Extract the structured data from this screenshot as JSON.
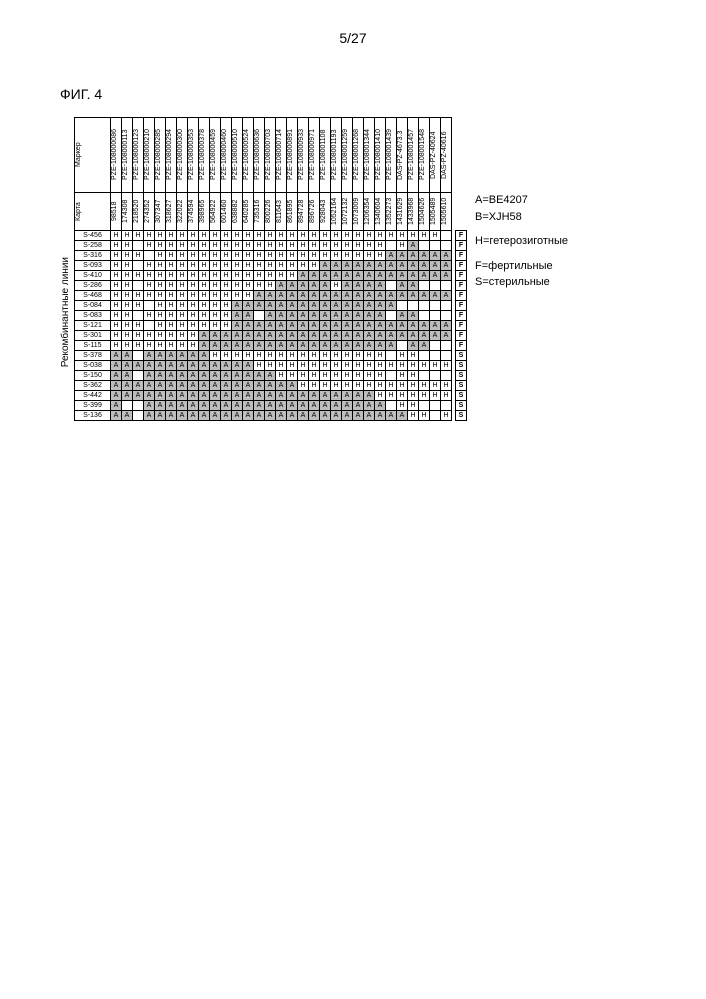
{
  "page_number": "5/27",
  "figure_label": "ФИГ. 4",
  "y_axis_label": "Рекомбинантные линии",
  "header_marker": "Маркер",
  "header_karta": "Карта",
  "markers": [
    "PZE-108000086",
    "PZE-108000113",
    "PZE-108000123",
    "PZE-108000210",
    "PZE-108000285",
    "PZE-108000294",
    "PZE-108000300",
    "PZE-108000353",
    "PZE-108000378",
    "PZE-108000459",
    "PZE-108000460",
    "PZE-108000510",
    "PZE-108000524",
    "PZE-108000636",
    "PZE-108000703",
    "PZE-108000714",
    "PZE-108000891",
    "PZE-108000933",
    "PZE-108000971",
    "PZE-108001108",
    "PZE-108001193",
    "PZE-108001259",
    "PZE-108001268",
    "PZE-108001344",
    "PZE-108001410",
    "PZE-108001439",
    "DAS-PZ-4673.3",
    "PZE-108001457",
    "PZE-108001548",
    "DAS-PZ-40624",
    "DAS-PZ-40616"
  ],
  "karta": [
    "98518",
    "174308",
    "218520",
    "274352",
    "307347",
    "318627",
    "322022",
    "374594",
    "398965",
    "564922",
    "601460",
    "638882",
    "640285",
    "735316",
    "800226",
    "811643",
    "861895",
    "894728",
    "896726",
    "928043",
    "1052164",
    "1072132",
    "1073009",
    "1206354",
    "1340604",
    "1352273",
    "1431629",
    "1433968",
    "1504626",
    "1505489",
    "1505610"
  ],
  "rows": [
    {
      "label": "S-456",
      "g": [
        "H",
        "H",
        "H",
        "H",
        "H",
        "H",
        "H",
        "H",
        "H",
        "H",
        "H",
        "H",
        "H",
        "H",
        "H",
        "H",
        "H",
        "H",
        "H",
        "H",
        "H",
        "H",
        "H",
        "H",
        "H",
        "H",
        "H",
        "H",
        "H",
        "H",
        ""
      ],
      "r": "F"
    },
    {
      "label": "S-258",
      "g": [
        "H",
        "H",
        "",
        "H",
        "H",
        "H",
        "H",
        "H",
        "H",
        "H",
        "H",
        "H",
        "H",
        "H",
        "H",
        "H",
        "H",
        "H",
        "H",
        "H",
        "H",
        "H",
        "H",
        "H",
        "H",
        "",
        "H",
        "A",
        "",
        "",
        ""
      ],
      "r": "F"
    },
    {
      "label": "S-316",
      "g": [
        "H",
        "H",
        "H",
        "",
        "H",
        "H",
        "H",
        "H",
        "H",
        "H",
        "H",
        "H",
        "H",
        "H",
        "H",
        "H",
        "H",
        "H",
        "H",
        "H",
        "H",
        "H",
        "H",
        "H",
        "H",
        "A",
        "A",
        "A",
        "A",
        "A",
        "A"
      ],
      "r": "F"
    },
    {
      "label": "S-093",
      "g": [
        "H",
        "H",
        "",
        "H",
        "H",
        "H",
        "H",
        "H",
        "H",
        "H",
        "H",
        "H",
        "H",
        "H",
        "H",
        "H",
        "H",
        "H",
        "H",
        "A",
        "A",
        "A",
        "A",
        "A",
        "A",
        "A",
        "A",
        "A",
        "A",
        "A",
        "A"
      ],
      "r": "F"
    },
    {
      "label": "S-410",
      "g": [
        "H",
        "H",
        "H",
        "H",
        "H",
        "H",
        "H",
        "H",
        "H",
        "H",
        "H",
        "H",
        "H",
        "H",
        "H",
        "H",
        "H",
        "A",
        "A",
        "A",
        "A",
        "A",
        "A",
        "A",
        "A",
        "A",
        "A",
        "A",
        "A",
        "A",
        "A"
      ],
      "r": "F"
    },
    {
      "label": "S-286",
      "g": [
        "H",
        "H",
        "",
        "H",
        "H",
        "H",
        "H",
        "H",
        "H",
        "H",
        "H",
        "H",
        "H",
        "H",
        "H",
        "A",
        "A",
        "A",
        "A",
        "A",
        "H",
        "A",
        "A",
        "A",
        "A",
        "",
        "A",
        "A",
        "",
        "",
        ""
      ],
      "r": "F"
    },
    {
      "label": "S-468",
      "g": [
        "H",
        "H",
        "H",
        "H",
        "H",
        "H",
        "H",
        "H",
        "H",
        "H",
        "H",
        "H",
        "H",
        "A",
        "A",
        "A",
        "A",
        "A",
        "A",
        "A",
        "A",
        "A",
        "A",
        "A",
        "A",
        "A",
        "A",
        "A",
        "A",
        "A",
        "A"
      ],
      "r": "F"
    },
    {
      "label": "S-084",
      "g": [
        "H",
        "H",
        "H",
        "",
        "H",
        "H",
        "H",
        "H",
        "H",
        "H",
        "H",
        "A",
        "A",
        "A",
        "A",
        "A",
        "A",
        "A",
        "A",
        "A",
        "A",
        "A",
        "A",
        "A",
        "A",
        "A",
        "",
        "",
        "",
        "",
        ""
      ],
      "r": "F"
    },
    {
      "label": "S-083",
      "g": [
        "H",
        "H",
        "",
        "H",
        "H",
        "H",
        "H",
        "H",
        "H",
        "H",
        "H",
        "A",
        "A",
        "",
        "A",
        "A",
        "A",
        "A",
        "A",
        "A",
        "A",
        "A",
        "A",
        "A",
        "A",
        "",
        "A",
        "A",
        "",
        "",
        ""
      ],
      "r": "F"
    },
    {
      "label": "S-121",
      "g": [
        "H",
        "H",
        "H",
        "",
        "H",
        "H",
        "H",
        "H",
        "H",
        "H",
        "H",
        "A",
        "A",
        "A",
        "A",
        "A",
        "A",
        "A",
        "A",
        "A",
        "A",
        "A",
        "A",
        "A",
        "A",
        "A",
        "A",
        "A",
        "A",
        "A",
        "A"
      ],
      "r": "F"
    },
    {
      "label": "S-301",
      "g": [
        "H",
        "H",
        "H",
        "H",
        "H",
        "H",
        "H",
        "H",
        "A",
        "A",
        "A",
        "A",
        "A",
        "A",
        "A",
        "A",
        "A",
        "A",
        "A",
        "A",
        "A",
        "A",
        "A",
        "A",
        "A",
        "A",
        "A",
        "A",
        "A",
        "A",
        "A"
      ],
      "r": "F"
    },
    {
      "label": "S-115",
      "g": [
        "H",
        "H",
        "H",
        "H",
        "H",
        "H",
        "H",
        "H",
        "A",
        "A",
        "A",
        "A",
        "A",
        "A",
        "A",
        "A",
        "A",
        "A",
        "A",
        "A",
        "A",
        "A",
        "A",
        "A",
        "A",
        "A",
        "",
        "A",
        "A",
        "",
        ""
      ],
      "r": "F"
    },
    {
      "label": "S-378",
      "g": [
        "A",
        "A",
        "",
        "A",
        "A",
        "A",
        "A",
        "A",
        "A",
        "H",
        "H",
        "H",
        "H",
        "H",
        "H",
        "H",
        "H",
        "H",
        "H",
        "H",
        "H",
        "H",
        "H",
        "H",
        "H",
        "",
        "H",
        "H",
        "",
        "",
        ""
      ],
      "r": "S"
    },
    {
      "label": "S-038",
      "g": [
        "A",
        "A",
        "A",
        "A",
        "A",
        "A",
        "A",
        "A",
        "A",
        "A",
        "A",
        "A",
        "A",
        "H",
        "H",
        "H",
        "H",
        "H",
        "H",
        "H",
        "H",
        "H",
        "H",
        "H",
        "H",
        "H",
        "H",
        "H",
        "H",
        "H",
        "H"
      ],
      "r": "S"
    },
    {
      "label": "S-150",
      "g": [
        "A",
        "A",
        "",
        "A",
        "A",
        "A",
        "A",
        "A",
        "A",
        "A",
        "A",
        "A",
        "A",
        "A",
        "A",
        "H",
        "H",
        "H",
        "H",
        "H",
        "H",
        "H",
        "H",
        "H",
        "H",
        "",
        "H",
        "H",
        "",
        "",
        ""
      ],
      "r": "S"
    },
    {
      "label": "S-362",
      "g": [
        "A",
        "A",
        "A",
        "A",
        "A",
        "A",
        "A",
        "A",
        "A",
        "A",
        "A",
        "A",
        "A",
        "A",
        "A",
        "A",
        "A",
        "H",
        "H",
        "H",
        "H",
        "H",
        "H",
        "H",
        "H",
        "H",
        "H",
        "H",
        "H",
        "H",
        "H"
      ],
      "r": "S"
    },
    {
      "label": "S-442",
      "g": [
        "A",
        "A",
        "A",
        "A",
        "A",
        "A",
        "A",
        "A",
        "A",
        "A",
        "A",
        "A",
        "A",
        "A",
        "A",
        "A",
        "A",
        "A",
        "A",
        "A",
        "A",
        "A",
        "A",
        "A",
        "H",
        "H",
        "H",
        "H",
        "H",
        "H",
        "H"
      ],
      "r": "S"
    },
    {
      "label": "S-399",
      "g": [
        "A",
        "",
        "",
        "A",
        "A",
        "A",
        "A",
        "A",
        "A",
        "A",
        "A",
        "A",
        "A",
        "A",
        "A",
        "A",
        "A",
        "A",
        "A",
        "A",
        "A",
        "A",
        "A",
        "A",
        "A",
        "",
        "H",
        "H",
        "",
        "",
        ""
      ],
      "r": "S"
    },
    {
      "label": "S-136",
      "g": [
        "A",
        "A",
        "",
        "A",
        "A",
        "A",
        "A",
        "A",
        "A",
        "A",
        "A",
        "A",
        "A",
        "A",
        "A",
        "A",
        "A",
        "A",
        "A",
        "A",
        "A",
        "A",
        "A",
        "A",
        "A",
        "A",
        "A",
        "H",
        "H",
        "",
        "H"
      ],
      "r": "S"
    }
  ],
  "legend": {
    "a": "A=BE4207",
    "b": "B=XJH58",
    "h": "H=гетерозиготные",
    "f": "F=фертильные",
    "s": "S=стерильные"
  }
}
